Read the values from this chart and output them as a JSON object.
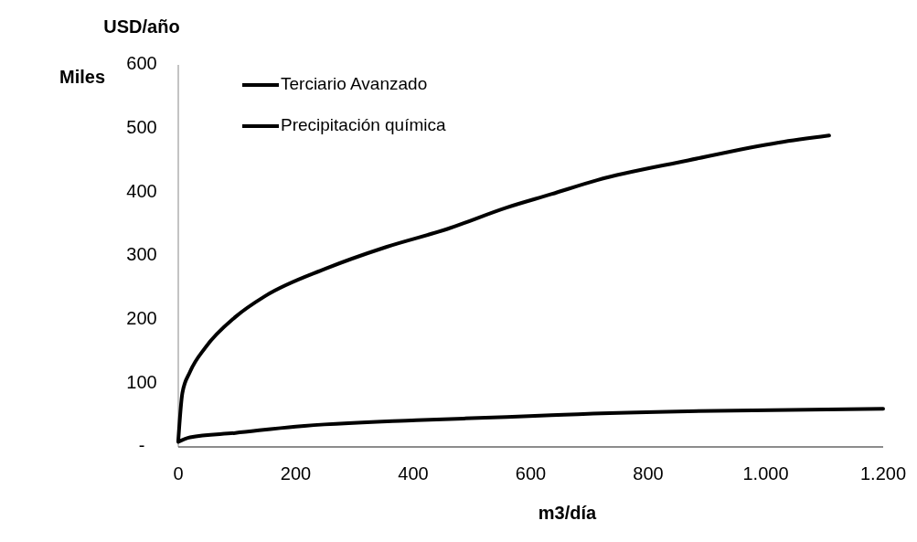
{
  "chart_data": {
    "type": "line",
    "ylabel": "USD/año",
    "xlabel": "m3/día",
    "annotations": [
      "Miles"
    ],
    "xlim": [
      0,
      1200
    ],
    "ylim": [
      0,
      600
    ],
    "xticks": [
      0,
      200,
      400,
      600,
      800,
      {
        "value": 1000,
        "label": "1.000"
      },
      {
        "value": 1200,
        "label": "1.200"
      }
    ],
    "yticks": [
      {
        "value": 0,
        "label": "-"
      },
      100,
      200,
      300,
      400,
      500,
      600
    ],
    "grid": false,
    "legend": "top left",
    "marker": "none",
    "line_style": "solid",
    "series": [
      {
        "name": "Terciario Avanzado",
        "color": "#000000",
        "x": [
          0,
          7,
          20,
          46,
          97,
          148,
          251,
          354,
          457,
          559,
          635,
          713,
          868,
          1022,
          1108
        ],
        "values": [
          10,
          85,
          118,
          156,
          204,
          237,
          280,
          314,
          342,
          376,
          397,
          419,
          450,
          478,
          489
        ]
      },
      {
        "name": "Precipitación química",
        "color": "#000000",
        "x": [
          0,
          20,
          97,
          200,
          405,
          559,
          635,
          868,
          1200
        ],
        "values": [
          8,
          15,
          22,
          32,
          42,
          47,
          50,
          56,
          60
        ]
      }
    ]
  }
}
